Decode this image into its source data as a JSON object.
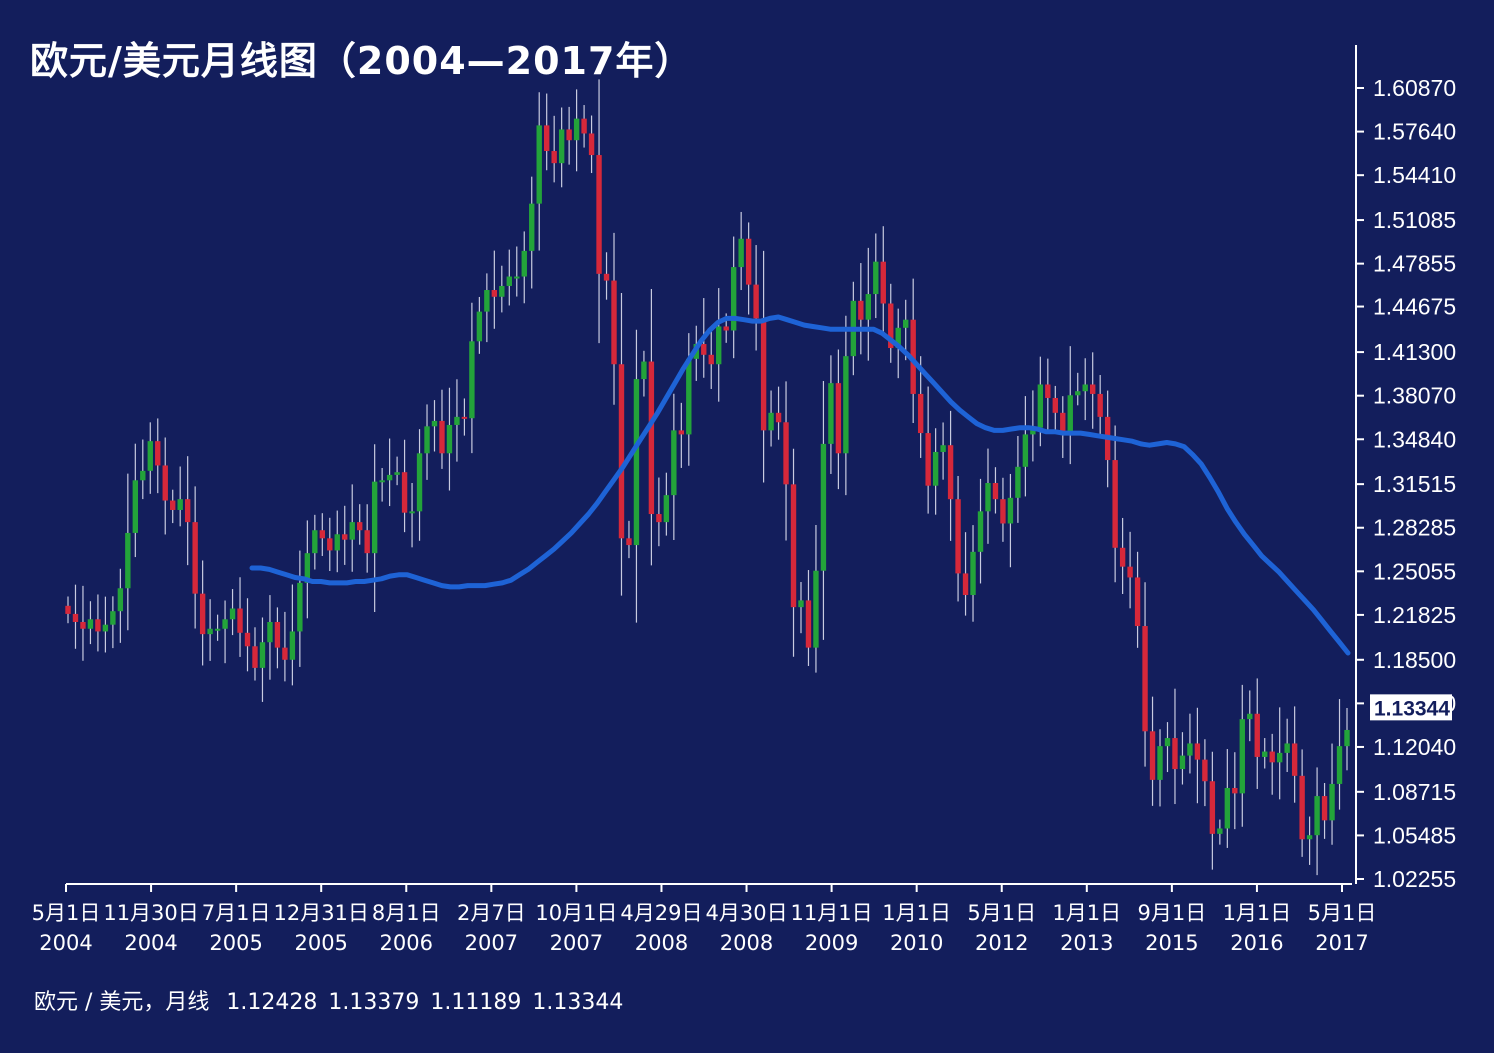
{
  "title": "欧元/美元月线图（2004—2017年）",
  "ohlc_label": {
    "symbol": "欧元 / 美元，月线",
    "open": "1.12428",
    "high": "1.13379",
    "low": "1.11189",
    "close": "1.13344"
  },
  "colors": {
    "background": "#131e5c",
    "up": "#23a33a",
    "down": "#d6283a",
    "wick": "#c8cbe0",
    "ma": "#1e63d6",
    "axis": "#ffffff"
  },
  "chart_data": {
    "type": "candlestick",
    "title": "欧元/美元月线图（2004—2017年）",
    "ylim": [
      1.01,
      1.625
    ],
    "y_ticks": [
      "1.60870",
      "1.57640",
      "1.54410",
      "1.51085",
      "1.47855",
      "1.44675",
      "1.41300",
      "1.38070",
      "1.34840",
      "1.31515",
      "1.28285",
      "1.25055",
      "1.21825",
      "1.18500",
      "1.15270",
      "1.12040",
      "1.08715",
      "1.05485",
      "1.02255"
    ],
    "current_price": "1.13344",
    "x_ticks": [
      {
        "l1": "5月1日",
        "l2": "2004"
      },
      {
        "l1": "11月30日",
        "l2": "2004"
      },
      {
        "l1": "7月1日",
        "l2": "2005"
      },
      {
        "l1": "12月31日",
        "l2": "2005"
      },
      {
        "l1": "8月1日",
        "l2": "2006"
      },
      {
        "l1": "2月7日",
        "l2": "2007"
      },
      {
        "l1": "10月1日",
        "l2": "2007"
      },
      {
        "l1": "4月29日",
        "l2": "2008"
      },
      {
        "l1": "4月30日",
        "l2": "2008"
      },
      {
        "l1": "11月1日",
        "l2": "2009"
      },
      {
        "l1": "1月1日",
        "l2": "2010"
      },
      {
        "l1": "5月1日",
        "l2": "2012"
      },
      {
        "l1": "1月1日",
        "l2": "2013"
      },
      {
        "l1": "9月1日",
        "l2": "2015"
      },
      {
        "l1": "1月1日",
        "l2": "2016"
      },
      {
        "l1": "5月1日",
        "l2": "2017"
      }
    ],
    "candle_close": [
      1.219,
      1.213,
      1.208,
      1.215,
      1.206,
      1.211,
      1.221,
      1.238,
      1.279,
      1.318,
      1.325,
      1.347,
      1.329,
      1.303,
      1.296,
      1.304,
      1.287,
      1.234,
      1.204,
      1.208,
      1.208,
      1.215,
      1.223,
      1.205,
      1.195,
      1.179,
      1.198,
      1.213,
      1.194,
      1.185,
      1.206,
      1.242,
      1.264,
      1.281,
      1.275,
      1.266,
      1.278,
      1.274,
      1.287,
      1.281,
      1.264,
      1.317,
      1.318,
      1.322,
      1.324,
      1.294,
      1.295,
      1.338,
      1.358,
      1.362,
      1.338,
      1.359,
      1.365,
      1.364,
      1.421,
      1.443,
      1.459,
      1.454,
      1.462,
      1.469,
      1.469,
      1.488,
      1.523,
      1.581,
      1.562,
      1.553,
      1.578,
      1.57,
      1.586,
      1.575,
      1.559,
      1.471,
      1.466,
      1.404,
      1.275,
      1.27,
      1.393,
      1.406,
      1.293,
      1.287,
      1.307,
      1.355,
      1.352,
      1.408,
      1.419,
      1.411,
      1.404,
      1.432,
      1.429,
      1.476,
      1.497,
      1.463,
      1.438,
      1.355,
      1.368,
      1.361,
      1.315,
      1.224,
      1.229,
      1.194,
      1.251,
      1.345,
      1.39,
      1.338,
      1.41,
      1.451,
      1.437,
      1.456,
      1.48,
      1.449,
      1.416,
      1.431,
      1.437,
      1.382,
      1.353,
      1.314,
      1.339,
      1.344,
      1.304,
      1.249,
      1.233,
      1.265,
      1.295,
      1.316,
      1.304,
      1.286,
      1.305,
      1.328,
      1.352,
      1.357,
      1.389,
      1.379,
      1.368,
      1.352,
      1.381,
      1.384,
      1.389,
      1.382,
      1.365,
      1.333,
      1.268,
      1.254,
      1.246,
      1.21,
      1.132,
      1.096,
      1.121,
      1.127,
      1.104,
      1.114,
      1.123,
      1.111,
      1.095,
      1.056,
      1.06,
      1.09,
      1.086,
      1.141,
      1.145,
      1.113,
      1.117,
      1.109,
      1.116,
      1.123,
      1.099,
      1.052,
      1.055,
      1.084,
      1.066,
      1.093,
      1.121,
      1.133
    ],
    "ma_line": [
      1.253,
      1.253,
      1.252,
      1.25,
      1.248,
      1.246,
      1.245,
      1.243,
      1.243,
      1.242,
      1.242,
      1.242,
      1.243,
      1.243,
      1.244,
      1.245,
      1.247,
      1.248,
      1.248,
      1.246,
      1.244,
      1.242,
      1.24,
      1.239,
      1.239,
      1.24,
      1.24,
      1.24,
      1.241,
      1.242,
      1.244,
      1.248,
      1.252,
      1.257,
      1.262,
      1.267,
      1.273,
      1.279,
      1.286,
      1.293,
      1.301,
      1.31,
      1.319,
      1.328,
      1.338,
      1.348,
      1.358,
      1.368,
      1.379,
      1.39,
      1.401,
      1.411,
      1.421,
      1.429,
      1.435,
      1.438,
      1.438,
      1.437,
      1.436,
      1.436,
      1.438,
      1.439,
      1.437,
      1.435,
      1.433,
      1.432,
      1.431,
      1.43,
      1.43,
      1.43,
      1.43,
      1.43,
      1.43,
      1.427,
      1.422,
      1.417,
      1.411,
      1.404,
      1.397,
      1.39,
      1.383,
      1.376,
      1.37,
      1.365,
      1.36,
      1.357,
      1.355,
      1.355,
      1.356,
      1.357,
      1.357,
      1.356,
      1.354,
      1.354,
      1.353,
      1.353,
      1.353,
      1.352,
      1.351,
      1.35,
      1.349,
      1.348,
      1.347,
      1.345,
      1.344,
      1.345,
      1.346,
      1.345,
      1.343,
      1.337,
      1.33,
      1.32,
      1.309,
      1.297,
      1.287,
      1.278,
      1.27,
      1.262,
      1.256,
      1.25,
      1.243,
      1.236,
      1.229,
      1.222,
      1.214,
      1.206,
      1.198,
      1.19
    ]
  }
}
